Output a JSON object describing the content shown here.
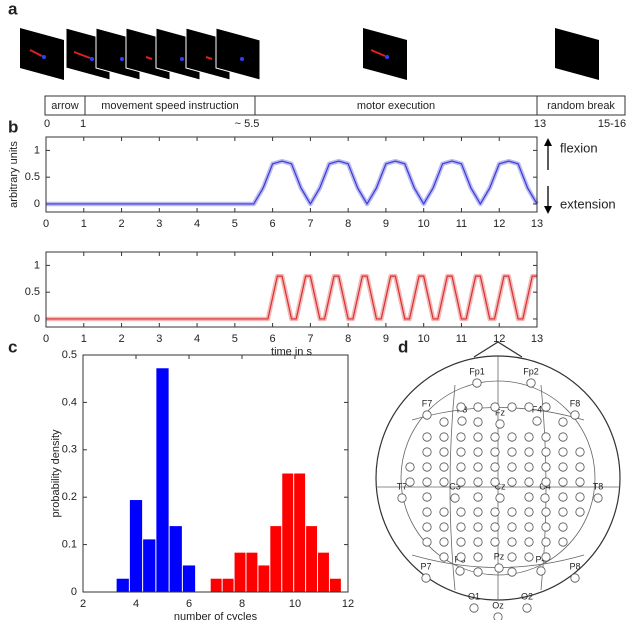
{
  "panel_labels": [
    "a",
    "b",
    "c",
    "d"
  ],
  "timeline": {
    "segments": [
      "arrow",
      "movement speed instruction",
      "motor execution",
      "random break"
    ],
    "ticks": [
      "0",
      "1",
      "~ 5.5",
      "13",
      "15-16"
    ]
  },
  "movement_labels": [
    "flexion",
    "extension"
  ],
  "chart_data": [
    {
      "type": "line",
      "y_label": "arbitrary units",
      "x": [
        0,
        5.5,
        5.75,
        6.0,
        6.25,
        6.5,
        6.75,
        7.0,
        7.25,
        7.5,
        7.75,
        8.0,
        8.25,
        8.5,
        8.75,
        9.0,
        9.25,
        9.5,
        9.75,
        10.0,
        10.25,
        10.5,
        10.75,
        11.0,
        11.25,
        11.5,
        11.75,
        12.0,
        12.25,
        12.5,
        12.75,
        13.0
      ],
      "series": [
        {
          "color": "#3a3ad6",
          "values": [
            0,
            0,
            0.3,
            0.75,
            0.8,
            0.75,
            0.3,
            0,
            0.3,
            0.75,
            0.8,
            0.75,
            0.3,
            0,
            0.3,
            0.75,
            0.8,
            0.75,
            0.3,
            0,
            0.3,
            0.75,
            0.8,
            0.75,
            0.3,
            0,
            0.3,
            0.75,
            0.8,
            0.75,
            0.3,
            0
          ]
        }
      ],
      "xlim": [
        0,
        13
      ],
      "xticks": [
        0,
        1,
        2,
        3,
        4,
        5,
        6,
        7,
        8,
        9,
        10,
        11,
        12,
        13
      ],
      "ylim": [
        -0.15,
        1.25
      ],
      "yticks": [
        0,
        0.5,
        1
      ]
    },
    {
      "type": "line",
      "x_label": "time in s",
      "x": [
        0,
        5.875,
        6,
        6.125,
        6.25,
        6.375,
        6.5,
        6.625,
        6.75,
        6.875,
        7,
        7.125,
        7.25,
        7.375,
        7.5,
        7.625,
        7.75,
        7.875,
        8,
        8.125,
        8.25,
        8.375,
        8.5,
        8.625,
        8.75,
        8.875,
        9,
        9.125,
        9.25,
        9.375,
        9.5,
        9.625,
        9.75,
        9.875,
        10,
        10.125,
        10.25,
        10.375,
        10.5,
        10.625,
        10.75,
        10.875,
        11,
        11.125,
        11.25,
        11.375,
        11.5,
        11.625,
        11.75,
        11.875,
        12,
        12.125,
        12.25,
        12.375,
        12.5,
        12.625,
        12.75,
        12.875,
        13
      ],
      "series": [
        {
          "color": "#d93030",
          "values": [
            0,
            0,
            0.4,
            0.8,
            0.8,
            0.4,
            0,
            0,
            0.4,
            0.8,
            0.8,
            0.4,
            0,
            0,
            0.4,
            0.8,
            0.8,
            0.4,
            0,
            0,
            0.4,
            0.8,
            0.8,
            0.4,
            0,
            0,
            0.4,
            0.8,
            0.8,
            0.4,
            0,
            0,
            0.4,
            0.8,
            0.8,
            0.4,
            0,
            0,
            0.4,
            0.8,
            0.8,
            0.4,
            0,
            0,
            0.4,
            0.8,
            0.8,
            0.4,
            0,
            0,
            0.4,
            0.8,
            0.8,
            0.4,
            0,
            0,
            0.4,
            0.8,
            0.8
          ]
        }
      ],
      "xlim": [
        0,
        13
      ],
      "xticks": [
        0,
        1,
        2,
        3,
        4,
        5,
        6,
        7,
        8,
        9,
        10,
        11,
        12,
        13
      ],
      "ylim": [
        -0.15,
        1.25
      ],
      "yticks": [
        0,
        0.5,
        1
      ]
    },
    {
      "type": "histogram",
      "x_label": "number of cycles",
      "y_label": "probability density",
      "series": [
        {
          "color": "#0000ff",
          "bins": [
            3.25,
            3.75,
            4.25,
            4.75,
            5.25,
            5.75,
            6.25
          ],
          "values": [
            0.028,
            0.194,
            0.111,
            0.472,
            0.139,
            0.056
          ]
        },
        {
          "color": "#ff0000",
          "bins": [
            6.8,
            7.25,
            7.7,
            8.15,
            8.6,
            9.05,
            9.5,
            9.95,
            10.4,
            10.85,
            11.3,
            11.75
          ],
          "values": [
            0.028,
            0.028,
            0.083,
            0.083,
            0.056,
            0.139,
            0.25,
            0.25,
            0.139,
            0.083,
            0.028
          ]
        }
      ],
      "xlim": [
        2,
        12
      ],
      "xticks": [
        2,
        4,
        6,
        8,
        10,
        12
      ],
      "ylim": [
        0,
        0.5
      ],
      "yticks": [
        0,
        0.1,
        0.2,
        0.3,
        0.4,
        0.5
      ]
    }
  ],
  "eeg": {
    "electrodes": [
      "Fp1",
      "Fp2",
      "F7",
      "F3",
      "Fz",
      "F4",
      "F8",
      "T7",
      "C3",
      "Cz",
      "C4",
      "T8",
      "P7",
      "P3",
      "Pz",
      "P4",
      "P8",
      "O1",
      "Oz",
      "O2"
    ]
  }
}
